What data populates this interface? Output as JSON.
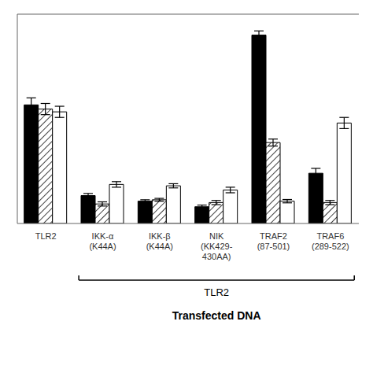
{
  "chart_data": {
    "type": "bar",
    "categories": [
      "TLR2",
      "IKK-α\n(K44A)",
      "IKK-β\n(K44A)",
      "NIK\n(KK429-\n430AA)",
      "TRAF2\n(87-501)",
      "TRAF6\n(289-522)"
    ],
    "series": [
      {
        "color": "black",
        "values": [
          8.5,
          2.0,
          1.6,
          1.2,
          13.5,
          3.6
        ],
        "errors": [
          0.5,
          0.15,
          0.1,
          0.12,
          0.3,
          0.35
        ]
      },
      {
        "color": "white",
        "values": [
          8.2,
          1.4,
          1.7,
          1.5,
          5.8,
          1.5
        ],
        "errors": [
          0.4,
          0.15,
          0.1,
          0.15,
          0.25,
          0.15
        ]
      },
      {
        "color": "white",
        "values": [
          8.0,
          2.8,
          2.7,
          2.4,
          1.6,
          7.2
        ],
        "errors": [
          0.4,
          0.2,
          0.15,
          0.2,
          0.12,
          0.4
        ]
      }
    ],
    "ylim": [
      0,
      15
    ],
    "yticks": [],
    "tick_labels": "x",
    "grid": false,
    "xlabel": "Transfected DNA",
    "annotations": [
      {
        "text": "TLR2",
        "from": "IKK-α\n(K44A)",
        "to": "TRAF6\n(289-522)"
      }
    ]
  }
}
